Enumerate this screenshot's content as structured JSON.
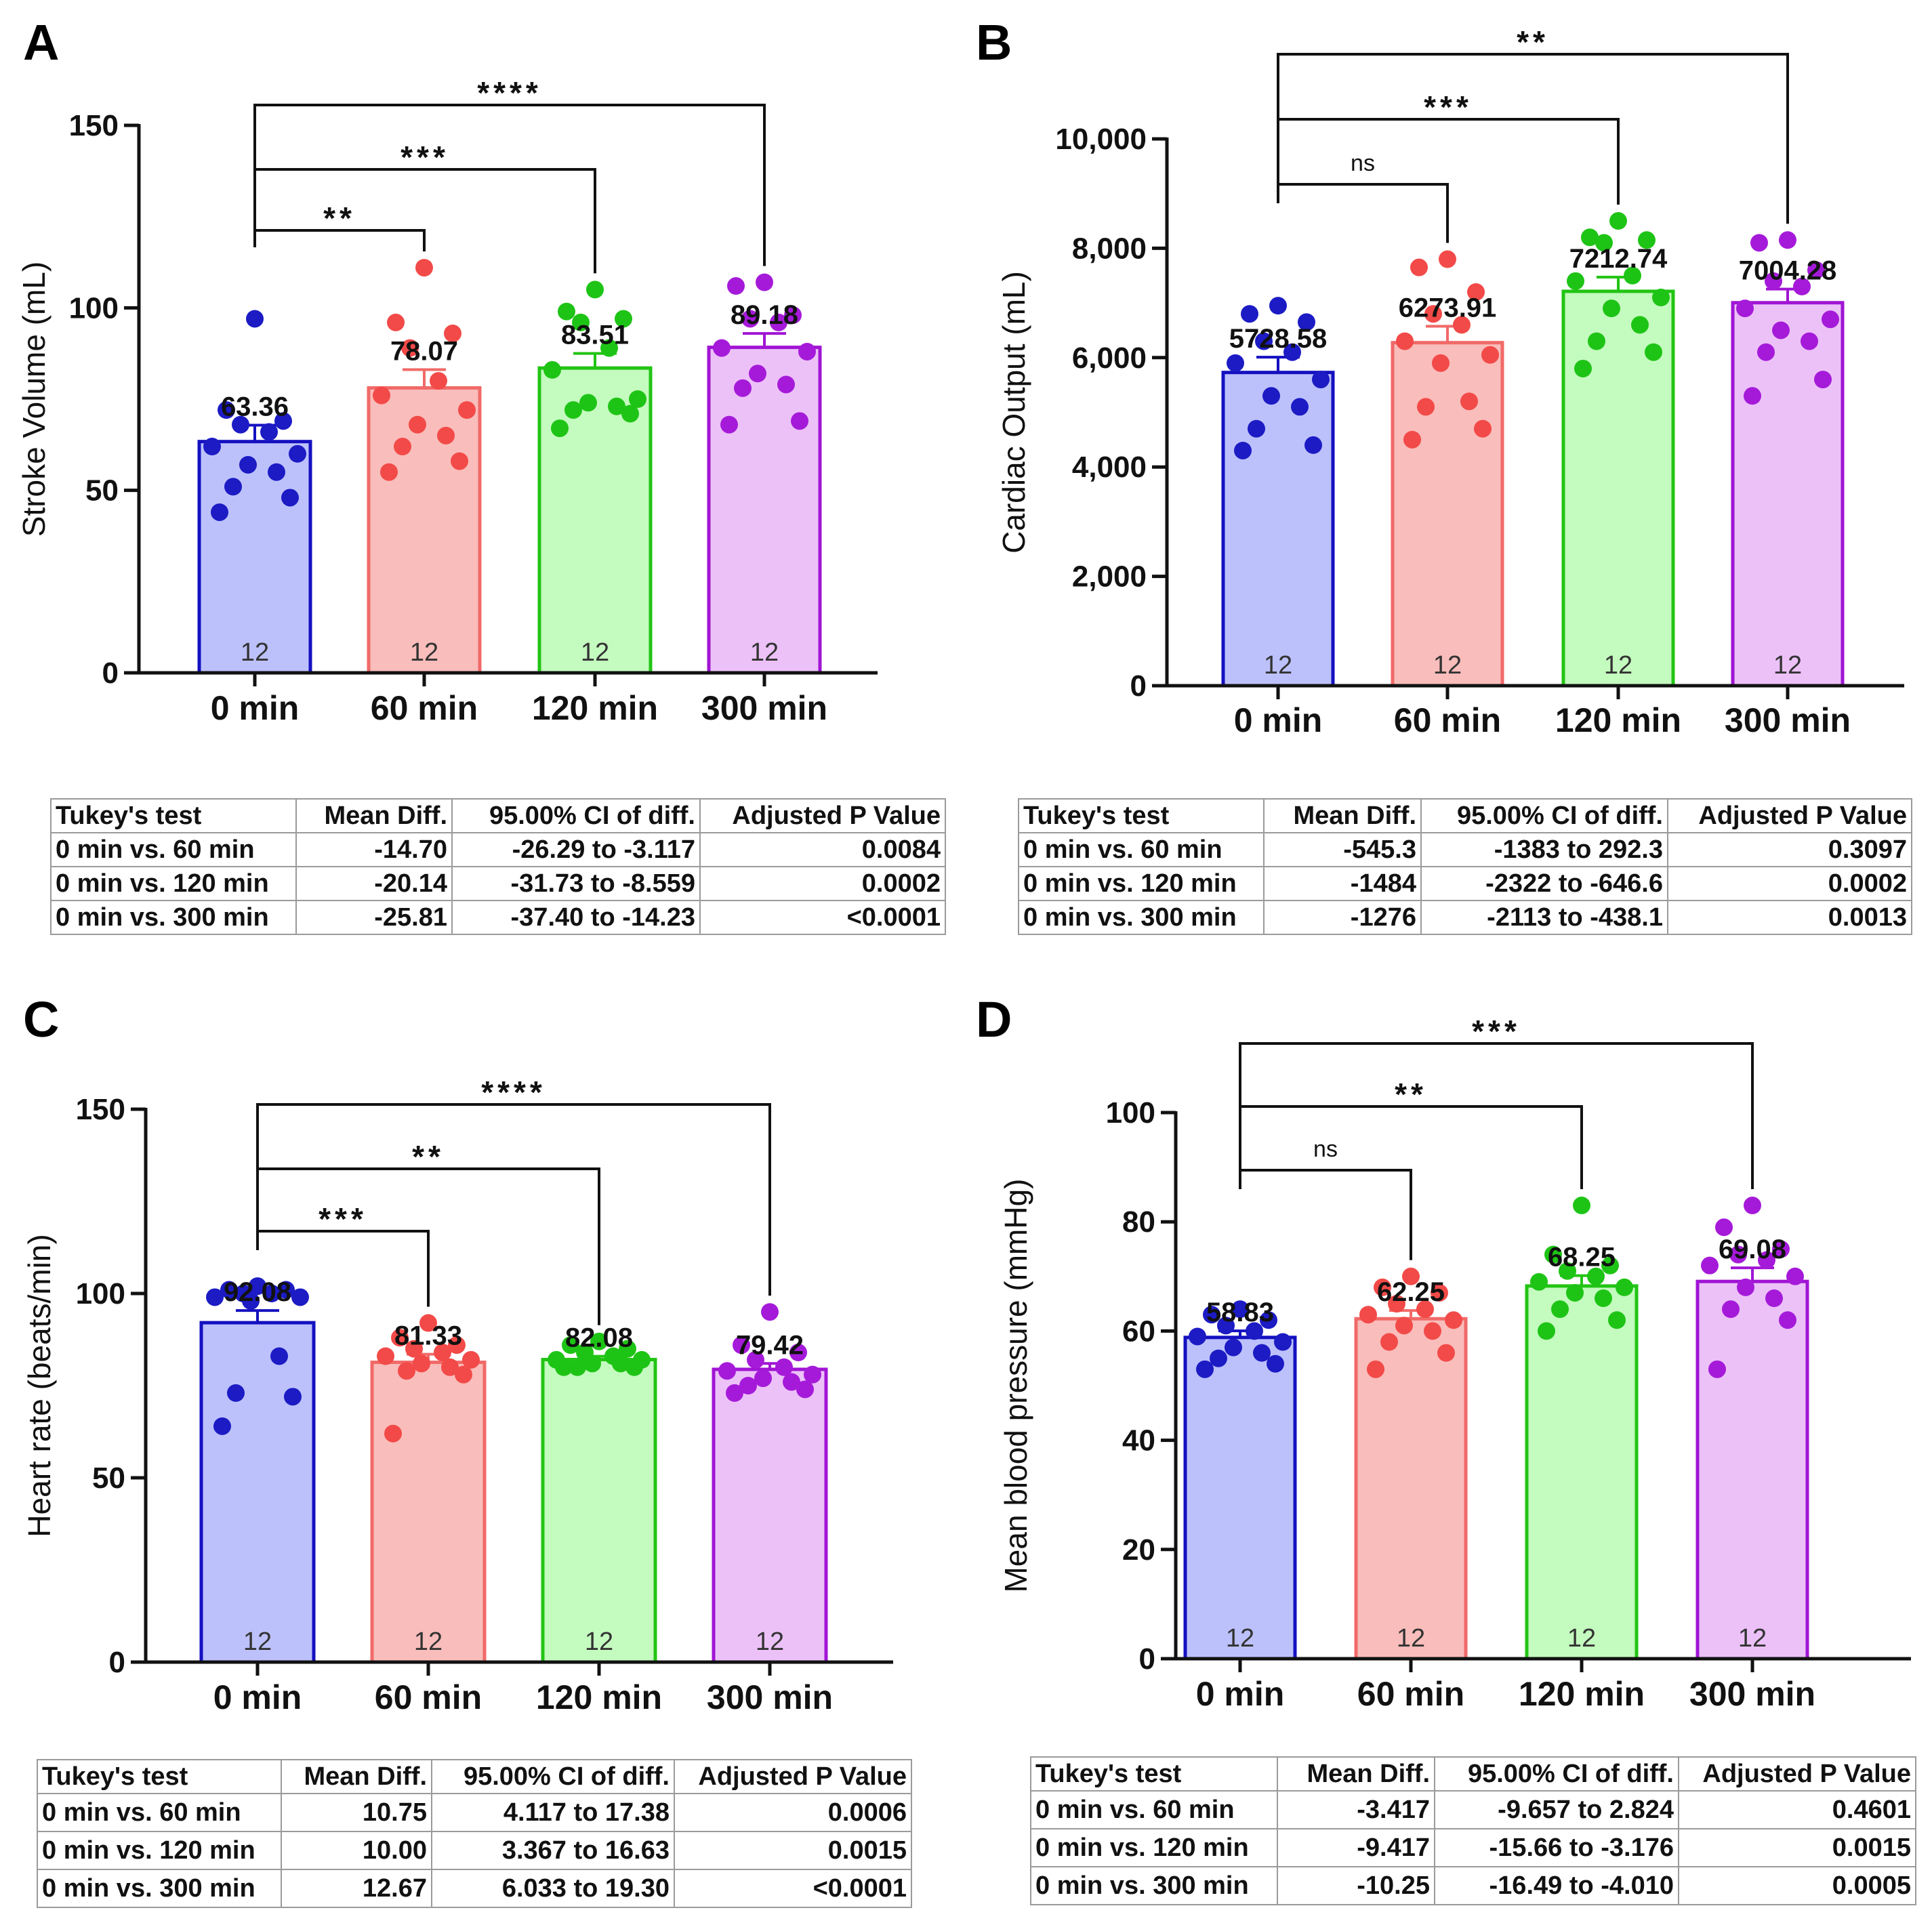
{
  "colors": {
    "fill": [
      "#bcc1fb",
      "#f9bdbb",
      "#c4fbbf",
      "#ecc1f8"
    ],
    "stroke": [
      "#1410c0",
      "#f06a68",
      "#22c414",
      "#a015d4"
    ],
    "dots": [
      "#1c1bc4",
      "#f24a48",
      "#1ec415",
      "#a51ad9"
    ]
  },
  "chart_data": [
    {
      "panel": "A",
      "type": "bar",
      "ylabel": "Stroke Volume (mL)",
      "categories": [
        "0 min",
        "60 min",
        "120 min",
        "300 min"
      ],
      "values": [
        63.36,
        78.07,
        83.51,
        89.18
      ],
      "value_labels": [
        "63.36",
        "78.07",
        "83.51",
        "89.18"
      ],
      "sem": [
        4.5,
        5.0,
        4.0,
        3.8
      ],
      "n_labels": [
        "12",
        "12",
        "12",
        "12"
      ],
      "ylim": [
        0,
        150
      ],
      "yticks": [
        0,
        50,
        100,
        150
      ],
      "ytick_labels": [
        "0",
        "50",
        "100",
        "150"
      ],
      "points": [
        [
          97,
          72,
          69,
          68,
          66,
          62,
          60,
          57,
          55,
          51,
          48,
          44
        ],
        [
          111,
          96,
          93,
          89,
          80,
          76,
          72,
          68,
          65,
          62,
          58,
          55
        ],
        [
          105,
          99,
          97,
          96,
          89,
          83,
          75,
          74,
          73,
          72,
          71,
          67
        ],
        [
          107,
          106,
          98,
          97,
          96,
          89,
          88,
          82,
          79,
          78,
          69,
          68
        ]
      ],
      "comparisons": [
        {
          "to": 1,
          "label": "**"
        },
        {
          "to": 2,
          "label": "***"
        },
        {
          "to": 3,
          "label": "****"
        }
      ],
      "table": {
        "headers": [
          "Tukey's test",
          "Mean Diff.",
          "95.00% CI of diff.",
          "Adjusted P Value"
        ],
        "rows": [
          [
            "0 min vs. 60 min",
            "-14.70",
            "-26.29 to -3.117",
            "0.0084"
          ],
          [
            "0 min vs. 120 min",
            "-20.14",
            "-31.73 to -8.559",
            "0.0002"
          ],
          [
            "0 min vs. 300 min",
            "-25.81",
            "-37.40 to -14.23",
            "<0.0001"
          ]
        ]
      }
    },
    {
      "panel": "B",
      "type": "bar",
      "ylabel": "Cardiac Output (mL)",
      "categories": [
        "0 min",
        "60 min",
        "120 min",
        "300 min"
      ],
      "values": [
        5728.58,
        6273.91,
        7212.74,
        7004.28
      ],
      "value_labels": [
        "5728.58",
        "6273.91",
        "7212.74",
        "7004.28"
      ],
      "sem": [
        280,
        300,
        260,
        250
      ],
      "n_labels": [
        "12",
        "12",
        "12",
        "12"
      ],
      "ylim": [
        0,
        10000
      ],
      "yticks": [
        0,
        2000,
        4000,
        6000,
        8000,
        10000
      ],
      "ytick_labels": [
        "0",
        "2,000",
        "4,000",
        "6,000",
        "8,000",
        "10,000"
      ],
      "points": [
        [
          6950,
          6800,
          6650,
          6300,
          6100,
          5900,
          5600,
          5300,
          5100,
          4700,
          4400,
          4300
        ],
        [
          7800,
          7650,
          7200,
          6800,
          6600,
          6300,
          6050,
          5900,
          5200,
          5100,
          4700,
          4500
        ],
        [
          8500,
          8200,
          8150,
          8100,
          7500,
          7400,
          7100,
          6900,
          6600,
          6300,
          6100,
          5800
        ],
        [
          8150,
          8100,
          7600,
          7400,
          7300,
          6900,
          6700,
          6500,
          6300,
          6100,
          5600,
          5300
        ]
      ],
      "comparisons": [
        {
          "to": 1,
          "label": "ns"
        },
        {
          "to": 2,
          "label": "***"
        },
        {
          "to": 3,
          "label": "**"
        }
      ],
      "table": {
        "headers": [
          "Tukey's test",
          "Mean Diff.",
          "95.00% CI of diff.",
          "Adjusted P Value"
        ],
        "rows": [
          [
            "0 min vs. 60 min",
            "-545.3",
            "-1383 to 292.3",
            "0.3097"
          ],
          [
            "0 min vs. 120 min",
            "-1484",
            "-2322 to -646.6",
            "0.0002"
          ],
          [
            "0 min vs. 300 min",
            "-1276",
            "-2113 to -438.1",
            "0.0013"
          ]
        ]
      }
    },
    {
      "panel": "C",
      "type": "bar",
      "ylabel": "Heart rate (beats/min)",
      "categories": [
        "0 min",
        "60 min",
        "120 min",
        "300 min"
      ],
      "values": [
        92.08,
        81.33,
        82.08,
        79.42
      ],
      "value_labels": [
        "92.08",
        "81.33",
        "82.08",
        "79.42"
      ],
      "sem": [
        3.3,
        2.2,
        0.9,
        1.6
      ],
      "n_labels": [
        "12",
        "12",
        "12",
        "12"
      ],
      "ylim": [
        0,
        150
      ],
      "yticks": [
        0,
        50,
        100,
        150
      ],
      "ytick_labels": [
        "0",
        "50",
        "100",
        "150"
      ],
      "points": [
        [
          102,
          101,
          101,
          100,
          100,
          99,
          99,
          98,
          83,
          73,
          72,
          64
        ],
        [
          92,
          88,
          86,
          85,
          84,
          83,
          82,
          81,
          80,
          79,
          78,
          62
        ],
        [
          87,
          86,
          85,
          84,
          83,
          82,
          82,
          81,
          81,
          80,
          80,
          80
        ],
        [
          95,
          86,
          84,
          82,
          80,
          79,
          78,
          77,
          76,
          75,
          74,
          73
        ]
      ],
      "comparisons": [
        {
          "to": 1,
          "label": "***"
        },
        {
          "to": 2,
          "label": "**"
        },
        {
          "to": 3,
          "label": "****"
        }
      ],
      "table": {
        "headers": [
          "Tukey's test",
          "Mean Diff.",
          "95.00% CI of diff.",
          "Adjusted P Value"
        ],
        "rows": [
          [
            "0 min vs. 60 min",
            "10.75",
            "4.117 to 17.38",
            "0.0006"
          ],
          [
            "0 min vs. 120 min",
            "10.00",
            "3.367 to 16.63",
            "0.0015"
          ],
          [
            "0 min vs. 300 min",
            "12.67",
            "6.033 to 19.30",
            "<0.0001"
          ]
        ]
      }
    },
    {
      "panel": "D",
      "type": "bar",
      "ylabel": "Mean blood pressure (mmHg)",
      "categories": [
        "0 min",
        "60 min",
        "120 min",
        "300 min"
      ],
      "values": [
        58.83,
        62.25,
        68.25,
        69.08
      ],
      "value_labels": [
        "58.83",
        "62.25",
        "68.25",
        "69.08"
      ],
      "sem": [
        1.2,
        1.5,
        1.9,
        2.5
      ],
      "n_labels": [
        "12",
        "12",
        "12",
        "12"
      ],
      "ylim": [
        0,
        100
      ],
      "yticks": [
        0,
        20,
        40,
        60,
        80,
        100
      ],
      "ytick_labels": [
        "0",
        "20",
        "40",
        "60",
        "80",
        "100"
      ],
      "points": [
        [
          64,
          63,
          62,
          61,
          60,
          59,
          58,
          57,
          56,
          55,
          54,
          53
        ],
        [
          70,
          68,
          67,
          65,
          64,
          63,
          62,
          61,
          60,
          58,
          56,
          53
        ],
        [
          83,
          74,
          72,
          71,
          70,
          69,
          68,
          67,
          66,
          64,
          62,
          60
        ],
        [
          83,
          79,
          75,
          74,
          73,
          72,
          70,
          68,
          66,
          64,
          62,
          53
        ]
      ],
      "comparisons": [
        {
          "to": 1,
          "label": "ns"
        },
        {
          "to": 2,
          "label": "**"
        },
        {
          "to": 3,
          "label": "***"
        }
      ],
      "table": {
        "headers": [
          "Tukey's test",
          "Mean Diff.",
          "95.00% CI of diff.",
          "Adjusted P Value"
        ],
        "rows": [
          [
            "0 min vs. 60 min",
            "-3.417",
            "-9.657 to 2.824",
            "0.4601"
          ],
          [
            "0 min vs. 120 min",
            "-9.417",
            "-15.66 to -3.176",
            "0.0015"
          ],
          [
            "0 min vs. 300 min",
            "-10.25",
            "-16.49 to -4.010",
            "0.0005"
          ]
        ]
      }
    }
  ]
}
